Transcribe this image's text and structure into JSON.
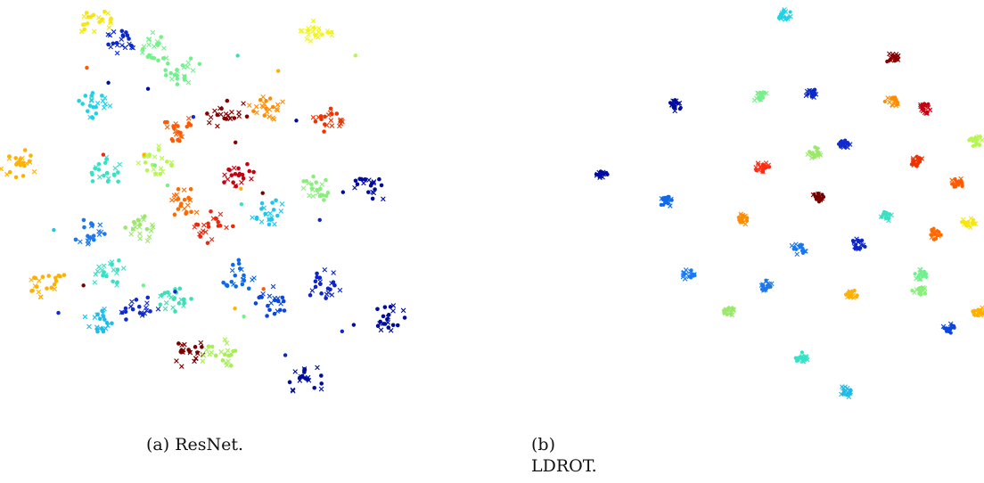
{
  "chart_data": [
    {
      "type": "scatter",
      "caption": "(a) ResNet.",
      "axes_visible": false,
      "grid": false,
      "legend": "none",
      "markers": {
        "source": "dot",
        "target": "cross"
      },
      "clusters": [
        {
          "color": "#f5e60f",
          "x": 0.232,
          "y": 0.947
        },
        {
          "color": "#0a28cc",
          "x": 0.287,
          "y": 0.904
        },
        {
          "color": "#73f288",
          "x": 0.366,
          "y": 0.884
        },
        {
          "color": "#6ff28c",
          "x": 0.43,
          "y": 0.832
        },
        {
          "color": "#f2f516",
          "x": 0.757,
          "y": 0.914
        },
        {
          "color": "#1fd2e8",
          "x": 0.234,
          "y": 0.74
        },
        {
          "color": "#ffb000",
          "x": 0.045,
          "y": 0.592
        },
        {
          "color": "#36e2c6",
          "x": 0.26,
          "y": 0.586
        },
        {
          "color": "#b7f652",
          "x": 0.376,
          "y": 0.607
        },
        {
          "color": "#ff5a00",
          "x": 0.42,
          "y": 0.692
        },
        {
          "color": "#8a0000",
          "x": 0.545,
          "y": 0.72
        },
        {
          "color": "#ff8c00",
          "x": 0.635,
          "y": 0.74
        },
        {
          "color": "#ee3300",
          "x": 0.787,
          "y": 0.716
        },
        {
          "color": "#c80010",
          "x": 0.57,
          "y": 0.57
        },
        {
          "color": "#000c9e",
          "x": 0.882,
          "y": 0.545
        },
        {
          "color": "#88f07a",
          "x": 0.748,
          "y": 0.54
        },
        {
          "color": "#1fc6ee",
          "x": 0.642,
          "y": 0.484
        },
        {
          "color": "#ff6a00",
          "x": 0.44,
          "y": 0.506
        },
        {
          "color": "#e82a10",
          "x": 0.505,
          "y": 0.448
        },
        {
          "color": "#9be86a",
          "x": 0.333,
          "y": 0.447
        },
        {
          "color": "#1b78ee",
          "x": 0.212,
          "y": 0.437
        },
        {
          "color": "#ffb000",
          "x": 0.111,
          "y": 0.307
        },
        {
          "color": "#3ae0c4",
          "x": 0.267,
          "y": 0.334
        },
        {
          "color": "#0e6ae8",
          "x": 0.562,
          "y": 0.326
        },
        {
          "color": "#0a46e0",
          "x": 0.645,
          "y": 0.266
        },
        {
          "color": "#0c24c8",
          "x": 0.766,
          "y": 0.306
        },
        {
          "color": "#000c9e",
          "x": 0.93,
          "y": 0.231
        },
        {
          "color": "#1fbcea",
          "x": 0.224,
          "y": 0.212
        },
        {
          "color": "#3ae0b8",
          "x": 0.41,
          "y": 0.276
        },
        {
          "color": "#122ad0",
          "x": 0.326,
          "y": 0.248
        },
        {
          "color": "#7a0000",
          "x": 0.44,
          "y": 0.143
        },
        {
          "color": "#a6f050",
          "x": 0.528,
          "y": 0.14
        },
        {
          "color": "#000c9e",
          "x": 0.73,
          "y": 0.07
        }
      ]
    },
    {
      "type": "scatter",
      "caption": "(b) LDROT.",
      "axes_visible": false,
      "grid": false,
      "legend": "none",
      "markers": {
        "source": "dot",
        "target": "cross"
      },
      "clusters": [
        {
          "color": "#1fd2e8",
          "x": 0.518,
          "y": 0.962
        },
        {
          "color": "#8a0000",
          "x": 0.781,
          "y": 0.858
        },
        {
          "color": "#0a28cc",
          "x": 0.585,
          "y": 0.773
        },
        {
          "color": "#73f288",
          "x": 0.458,
          "y": 0.767
        },
        {
          "color": "#000c9e",
          "x": 0.254,
          "y": 0.743
        },
        {
          "color": "#ff8c00",
          "x": 0.778,
          "y": 0.751
        },
        {
          "color": "#c80010",
          "x": 0.857,
          "y": 0.737
        },
        {
          "color": "#b7f652",
          "x": 0.981,
          "y": 0.655
        },
        {
          "color": "#122ad0",
          "x": 0.663,
          "y": 0.647
        },
        {
          "color": "#9be86a",
          "x": 0.594,
          "y": 0.626
        },
        {
          "color": "#ee3300",
          "x": 0.836,
          "y": 0.608
        },
        {
          "color": "#ff2a10",
          "x": 0.465,
          "y": 0.593
        },
        {
          "color": "#000c9e",
          "x": 0.077,
          "y": 0.574
        },
        {
          "color": "#ff5a00",
          "x": 0.935,
          "y": 0.553
        },
        {
          "color": "#7a0000",
          "x": 0.603,
          "y": 0.52
        },
        {
          "color": "#0e6ae8",
          "x": 0.232,
          "y": 0.511
        },
        {
          "color": "#3ae0c4",
          "x": 0.767,
          "y": 0.474
        },
        {
          "color": "#ff8c00",
          "x": 0.416,
          "y": 0.465
        },
        {
          "color": "#f5e60f",
          "x": 0.962,
          "y": 0.459
        },
        {
          "color": "#ff6a00",
          "x": 0.88,
          "y": 0.428
        },
        {
          "color": "#0c24c8",
          "x": 0.699,
          "y": 0.405
        },
        {
          "color": "#1b78ee",
          "x": 0.553,
          "y": 0.393
        },
        {
          "color": "#1b78ee",
          "x": 0.287,
          "y": 0.332
        },
        {
          "color": "#6ff28c",
          "x": 0.85,
          "y": 0.331
        },
        {
          "color": "#1b78ee",
          "x": 0.471,
          "y": 0.302
        },
        {
          "color": "#ffb000",
          "x": 0.683,
          "y": 0.282
        },
        {
          "color": "#88f07a",
          "x": 0.846,
          "y": 0.29
        },
        {
          "color": "#9be86a",
          "x": 0.384,
          "y": 0.239
        },
        {
          "color": "#ffb000",
          "x": 0.986,
          "y": 0.237
        },
        {
          "color": "#0a46e0",
          "x": 0.914,
          "y": 0.198
        },
        {
          "color": "#36e2c6",
          "x": 0.56,
          "y": 0.125
        },
        {
          "color": "#1fbcea",
          "x": 0.665,
          "y": 0.045
        }
      ]
    }
  ]
}
